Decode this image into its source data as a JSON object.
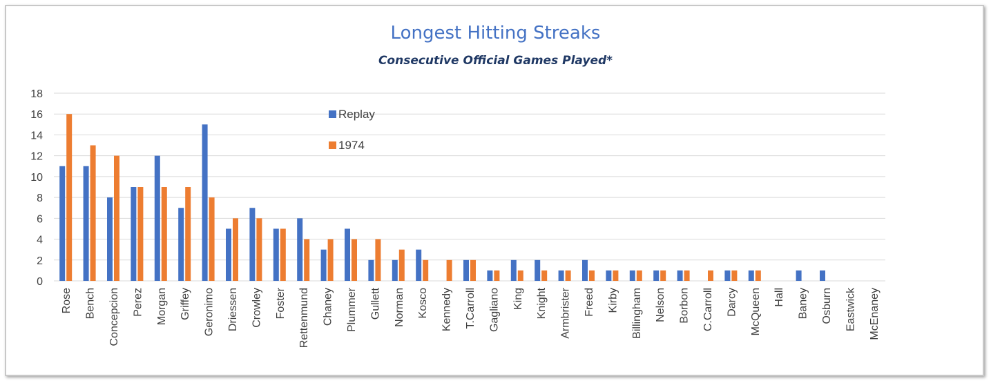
{
  "chart_data": {
    "type": "bar",
    "title": "Longest Hitting Streaks",
    "subtitle": "Consecutive Official Games Played*",
    "xlabel": "",
    "ylabel": "",
    "ylim": [
      0,
      18
    ],
    "yticks": [
      0,
      2,
      4,
      6,
      8,
      10,
      12,
      14,
      16,
      18
    ],
    "grid": true,
    "legend_position": "top-center",
    "categories": [
      "Rose",
      "Bench",
      "Concepcion",
      "Perez",
      "Morgan",
      "Griffey",
      "Geronimo",
      "Driessen",
      "Crowley",
      "Foster",
      "Rettenmund",
      "Chaney",
      "Plummer",
      "Gullett",
      "Norman",
      "Kosco",
      "Kennedy",
      "T.Carroll",
      "Gagliano",
      "King",
      "Knight",
      "Armbrister",
      "Freed",
      "Kirby",
      "Billingham",
      "Nelson",
      "Borbon",
      "C.Carroll",
      "Darcy",
      "McQueen",
      "Hall",
      "Baney",
      "Osburn",
      "Eastwick",
      "McEnaney"
    ],
    "series": [
      {
        "name": "Replay",
        "color": "#4472c4",
        "values": [
          11,
          11,
          8,
          9,
          12,
          7,
          15,
          5,
          7,
          5,
          6,
          3,
          5,
          2,
          2,
          3,
          0,
          2,
          1,
          2,
          2,
          1,
          2,
          1,
          1,
          1,
          1,
          0,
          1,
          1,
          0,
          1,
          1,
          0,
          0
        ]
      },
      {
        "name": "1974",
        "color": "#ed7d31",
        "values": [
          16,
          13,
          12,
          9,
          9,
          9,
          8,
          6,
          6,
          5,
          4,
          4,
          4,
          4,
          3,
          2,
          2,
          2,
          1,
          1,
          1,
          1,
          1,
          1,
          1,
          1,
          1,
          1,
          1,
          1,
          0,
          0,
          0,
          0,
          0
        ]
      }
    ]
  }
}
